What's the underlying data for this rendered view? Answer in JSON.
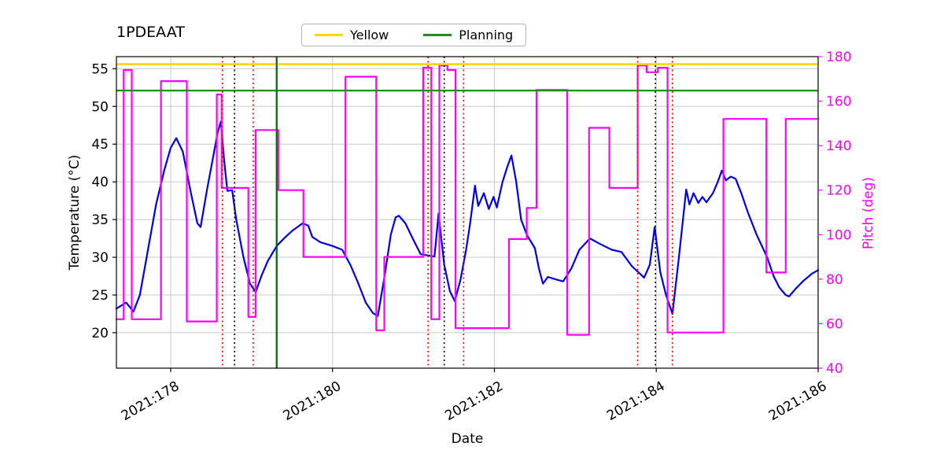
{
  "chart_data": {
    "type": "line",
    "title": "1PDEAAT",
    "xlabel": "Date",
    "ylabel_left": "Temperature (°C)",
    "ylabel_right": "Pitch (deg)",
    "grid": true,
    "colors": {
      "temperature": "#0000EE",
      "pitch": "#FF00FF",
      "yellow_limit": "#FFD700",
      "planning_limit": "#228B22",
      "green_vline": "#006400",
      "red_vline": "#FF0000",
      "black_vline": "#000000",
      "grid_line": "#C8C8C8"
    },
    "x_axis": {
      "range": [
        177.33,
        186.0
      ],
      "ticks": [
        {
          "value": 178,
          "label": "2021:178"
        },
        {
          "value": 180,
          "label": "2021:180"
        },
        {
          "value": 182,
          "label": "2021:182"
        },
        {
          "value": 184,
          "label": "2021:184"
        },
        {
          "value": 186,
          "label": "2021:186"
        }
      ]
    },
    "y_left": {
      "range": [
        15.3,
        56.6
      ],
      "ticks": [
        20,
        25,
        30,
        35,
        40,
        45,
        50,
        55
      ]
    },
    "y_right": {
      "range": [
        40,
        180
      ],
      "ticks": [
        40,
        60,
        80,
        100,
        120,
        140,
        160,
        180
      ],
      "color": "#FF00FF"
    },
    "legend": {
      "position": "top-center",
      "entries": [
        {
          "label": "Yellow",
          "color": "#FFD700"
        },
        {
          "label": "Planning",
          "color": "#228B22"
        }
      ]
    },
    "reference_lines": {
      "horizontal": [
        {
          "name": "yellow-limit",
          "axis": "left",
          "value": 55.6,
          "color": "#FFD700",
          "style": "solid",
          "width": 2.6
        },
        {
          "name": "planning-limit",
          "axis": "left",
          "value": 52.1,
          "color": "#228B22",
          "style": "solid",
          "width": 2.2
        }
      ],
      "vertical": [
        {
          "name": "red-dotted-1",
          "x": 178.64,
          "color": "#FF0000",
          "style": "dotted",
          "width": 1.6
        },
        {
          "name": "black-dotted-1",
          "x": 178.79,
          "color": "#000000",
          "style": "dotted",
          "width": 1.6
        },
        {
          "name": "red-dotted-2",
          "x": 179.02,
          "color": "#FF0000",
          "style": "dotted",
          "width": 1.6
        },
        {
          "name": "green-solid",
          "x": 179.31,
          "color": "#006400",
          "style": "solid",
          "width": 2.2
        },
        {
          "name": "red-dotted-3",
          "x": 181.18,
          "color": "#FF0000",
          "style": "dotted",
          "width": 1.6
        },
        {
          "name": "black-dotted-2",
          "x": 181.38,
          "color": "#000000",
          "style": "dotted",
          "width": 1.6
        },
        {
          "name": "red-dotted-4",
          "x": 181.62,
          "color": "#FF0000",
          "style": "dotted",
          "width": 1.6
        },
        {
          "name": "red-dotted-5",
          "x": 183.77,
          "color": "#FF0000",
          "style": "dotted",
          "width": 1.6
        },
        {
          "name": "black-dotted-3",
          "x": 183.99,
          "color": "#000000",
          "style": "dotted",
          "width": 1.6
        },
        {
          "name": "red-dotted-6",
          "x": 184.2,
          "color": "#FF0000",
          "style": "dotted",
          "width": 1.6
        }
      ]
    },
    "series": [
      {
        "name": "temperature",
        "axis": "left",
        "color": "#0000EE",
        "width": 2.2,
        "points": [
          [
            177.33,
            23.2
          ],
          [
            177.45,
            24.0
          ],
          [
            177.54,
            22.8
          ],
          [
            177.62,
            25.0
          ],
          [
            177.72,
            31.0
          ],
          [
            177.82,
            37.0
          ],
          [
            177.92,
            41.5
          ],
          [
            178.0,
            44.5
          ],
          [
            178.07,
            45.8
          ],
          [
            178.15,
            44.0
          ],
          [
            178.25,
            38.5
          ],
          [
            178.33,
            34.5
          ],
          [
            178.37,
            34.0
          ],
          [
            178.45,
            39.0
          ],
          [
            178.52,
            43.0
          ],
          [
            178.58,
            46.5
          ],
          [
            178.62,
            48.0
          ],
          [
            178.66,
            43.0
          ],
          [
            178.7,
            38.8
          ],
          [
            178.76,
            38.9
          ],
          [
            178.81,
            35.0
          ],
          [
            178.9,
            30.0
          ],
          [
            178.98,
            26.5
          ],
          [
            179.05,
            25.4
          ],
          [
            179.12,
            27.5
          ],
          [
            179.2,
            29.5
          ],
          [
            179.31,
            31.5
          ],
          [
            179.4,
            32.5
          ],
          [
            179.5,
            33.5
          ],
          [
            179.63,
            34.5
          ],
          [
            179.7,
            34.2
          ],
          [
            179.75,
            32.7
          ],
          [
            179.85,
            32.0
          ],
          [
            180.0,
            31.5
          ],
          [
            180.12,
            31.0
          ],
          [
            180.22,
            29.0
          ],
          [
            180.32,
            26.5
          ],
          [
            180.41,
            24.0
          ],
          [
            180.5,
            22.6
          ],
          [
            180.56,
            22.2
          ],
          [
            180.65,
            28.0
          ],
          [
            180.72,
            33.0
          ],
          [
            180.78,
            35.3
          ],
          [
            180.82,
            35.5
          ],
          [
            180.9,
            34.5
          ],
          [
            180.99,
            32.5
          ],
          [
            181.09,
            30.4
          ],
          [
            181.2,
            30.2
          ],
          [
            181.26,
            30.1
          ],
          [
            181.31,
            35.8
          ],
          [
            181.38,
            29.0
          ],
          [
            181.45,
            25.5
          ],
          [
            181.51,
            24.2
          ],
          [
            181.58,
            27.0
          ],
          [
            181.65,
            31.0
          ],
          [
            181.7,
            34.5
          ],
          [
            181.76,
            39.5
          ],
          [
            181.8,
            36.8
          ],
          [
            181.87,
            38.5
          ],
          [
            181.93,
            36.4
          ],
          [
            181.99,
            38.0
          ],
          [
            182.03,
            36.6
          ],
          [
            182.1,
            40.0
          ],
          [
            182.16,
            42.0
          ],
          [
            182.21,
            43.5
          ],
          [
            182.27,
            40.0
          ],
          [
            182.33,
            35.0
          ],
          [
            182.4,
            33.0
          ],
          [
            182.5,
            31.2
          ],
          [
            182.55,
            28.5
          ],
          [
            182.6,
            26.5
          ],
          [
            182.66,
            27.4
          ],
          [
            182.72,
            27.2
          ],
          [
            182.78,
            27.0
          ],
          [
            182.85,
            26.8
          ],
          [
            182.95,
            28.5
          ],
          [
            183.05,
            31.0
          ],
          [
            183.18,
            32.5
          ],
          [
            183.3,
            31.8
          ],
          [
            183.45,
            31.0
          ],
          [
            183.57,
            30.7
          ],
          [
            183.7,
            28.8
          ],
          [
            183.78,
            28.0
          ],
          [
            183.85,
            27.3
          ],
          [
            183.92,
            29.0
          ],
          [
            183.98,
            34.0
          ],
          [
            184.05,
            28.0
          ],
          [
            184.12,
            25.0
          ],
          [
            184.2,
            22.5
          ],
          [
            184.28,
            30.0
          ],
          [
            184.37,
            39.0
          ],
          [
            184.41,
            37.0
          ],
          [
            184.46,
            38.5
          ],
          [
            184.52,
            37.2
          ],
          [
            184.57,
            38.0
          ],
          [
            184.62,
            37.3
          ],
          [
            184.7,
            38.5
          ],
          [
            184.76,
            40.0
          ],
          [
            184.81,
            41.5
          ],
          [
            184.86,
            40.2
          ],
          [
            184.92,
            40.7
          ],
          [
            184.98,
            40.4
          ],
          [
            185.05,
            38.5
          ],
          [
            185.13,
            36.0
          ],
          [
            185.24,
            33.0
          ],
          [
            185.37,
            30.0
          ],
          [
            185.45,
            27.5
          ],
          [
            185.52,
            26.0
          ],
          [
            185.6,
            25.0
          ],
          [
            185.64,
            24.8
          ],
          [
            185.72,
            25.8
          ],
          [
            185.81,
            26.8
          ],
          [
            185.92,
            27.8
          ],
          [
            186.0,
            28.3
          ]
        ]
      },
      {
        "name": "pitch",
        "axis": "right",
        "color": "#FF00FF",
        "width": 2.2,
        "points": [
          [
            177.33,
            62
          ],
          [
            177.42,
            62
          ],
          [
            177.42,
            174
          ],
          [
            177.52,
            174
          ],
          [
            177.52,
            62
          ],
          [
            177.88,
            62
          ],
          [
            177.88,
            169
          ],
          [
            178.2,
            169
          ],
          [
            178.2,
            61
          ],
          [
            178.57,
            61
          ],
          [
            178.57,
            163
          ],
          [
            178.63,
            163
          ],
          [
            178.63,
            121
          ],
          [
            178.96,
            121
          ],
          [
            178.96,
            63
          ],
          [
            179.05,
            63
          ],
          [
            179.05,
            147
          ],
          [
            179.33,
            147
          ],
          [
            179.33,
            120
          ],
          [
            179.64,
            120
          ],
          [
            179.64,
            90
          ],
          [
            180.16,
            90
          ],
          [
            180.16,
            171
          ],
          [
            180.54,
            171
          ],
          [
            180.54,
            57
          ],
          [
            180.64,
            57
          ],
          [
            180.64,
            90
          ],
          [
            181.12,
            90
          ],
          [
            181.12,
            175
          ],
          [
            181.22,
            175
          ],
          [
            181.22,
            62
          ],
          [
            181.32,
            62
          ],
          [
            181.32,
            176
          ],
          [
            181.42,
            176
          ],
          [
            181.42,
            174
          ],
          [
            181.52,
            174
          ],
          [
            181.52,
            58
          ],
          [
            182.18,
            58
          ],
          [
            182.18,
            98
          ],
          [
            182.4,
            98
          ],
          [
            182.4,
            112
          ],
          [
            182.52,
            112
          ],
          [
            182.52,
            165
          ],
          [
            182.9,
            165
          ],
          [
            182.9,
            55
          ],
          [
            183.17,
            55
          ],
          [
            183.17,
            148
          ],
          [
            183.42,
            148
          ],
          [
            183.42,
            121
          ],
          [
            183.77,
            121
          ],
          [
            183.77,
            176
          ],
          [
            183.88,
            176
          ],
          [
            183.88,
            173
          ],
          [
            184.02,
            173
          ],
          [
            184.02,
            175
          ],
          [
            184.14,
            175
          ],
          [
            184.14,
            56
          ],
          [
            184.83,
            56
          ],
          [
            184.83,
            152
          ],
          [
            185.36,
            152
          ],
          [
            185.36,
            83
          ],
          [
            185.6,
            83
          ],
          [
            185.6,
            152
          ],
          [
            186.0,
            152
          ]
        ]
      }
    ]
  }
}
